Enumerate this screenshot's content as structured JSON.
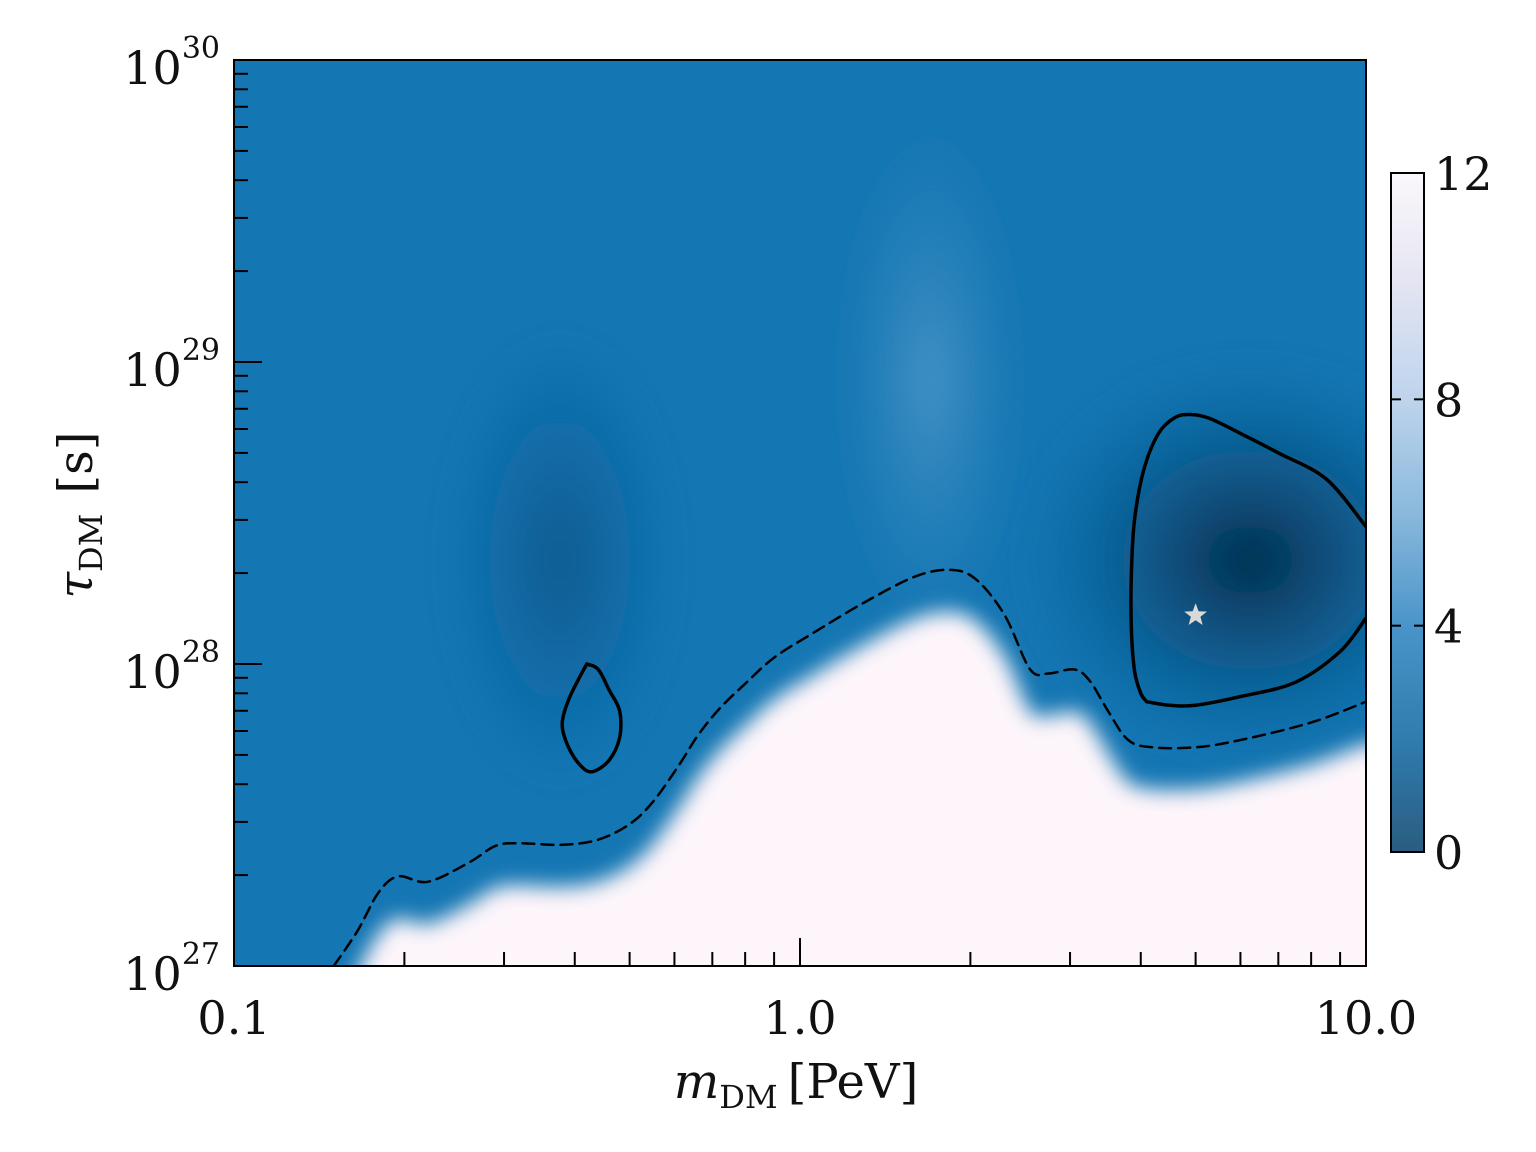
{
  "chart_data": {
    "type": "heatmap",
    "title": "",
    "xlabel": {
      "symbol": "m",
      "subscript": "DM",
      "unit": "[PeV]"
    },
    "ylabel": {
      "symbol": "τ",
      "subscript": "DM",
      "unit": "[s]"
    },
    "x_scale": "log",
    "y_scale": "log",
    "xlim": [
      0.1,
      10.0
    ],
    "ylim": [
      1e+27,
      1e+30
    ],
    "x_ticks": [
      {
        "value": 0.1,
        "label": "0.1"
      },
      {
        "value": 1.0,
        "label": "1.0"
      },
      {
        "value": 10.0,
        "label": "10.0"
      }
    ],
    "y_ticks": [
      {
        "value": 1e+27,
        "base": "10",
        "exp": "27"
      },
      {
        "value": 1e+28,
        "base": "10",
        "exp": "28"
      },
      {
        "value": 1e+29,
        "base": "10",
        "exp": "29"
      },
      {
        "value": 1e+30,
        "base": "10",
        "exp": "30"
      }
    ],
    "colorbar": {
      "range": [
        0,
        12
      ],
      "ticks": [
        0,
        4,
        8,
        12
      ],
      "colors": {
        "low": "#0b3f66",
        "mid": "#1476b3",
        "high": "#fdf5fa"
      }
    },
    "best_fit": {
      "mass": 5.0,
      "lifetime": 1.45e+28,
      "marker": "star-icon"
    },
    "contours": [
      {
        "style": "solid",
        "points": [
          [
            0.42,
            1e+28
          ],
          [
            0.44,
            9.6e+27
          ],
          [
            0.46,
            8.2e+27
          ],
          [
            0.48,
            7e+27
          ],
          [
            0.48,
            5.7e+27
          ],
          [
            0.46,
            4.8e+27
          ],
          [
            0.43,
            4.4e+27
          ],
          [
            0.41,
            4.6e+27
          ],
          [
            0.39,
            5.3e+27
          ],
          [
            0.38,
            6.3e+27
          ],
          [
            0.39,
            7.6e+27
          ],
          [
            0.41,
            9.2e+27
          ],
          [
            0.42,
            1e+28
          ]
        ]
      },
      {
        "style": "solid",
        "points": [
          [
            4.1,
            7.5e+27
          ],
          [
            4.5,
            7.3e+27
          ],
          [
            5.0,
            7.3e+27
          ],
          [
            6.0,
            7.8e+27
          ],
          [
            7.5,
            8.7e+27
          ],
          [
            9.0,
            1.1e+28
          ],
          [
            10.0,
            1.42e+28
          ]
        ]
      },
      {
        "style": "solid",
        "points": [
          [
            10.0,
            2.85e+28
          ],
          [
            8.5,
            4.1e+28
          ],
          [
            7.0,
            5e+28
          ],
          [
            6.0,
            5.8e+28
          ],
          [
            5.3,
            6.5e+28
          ],
          [
            4.9,
            6.7e+28
          ],
          [
            4.6,
            6.55e+28
          ],
          [
            4.3,
            5.8e+28
          ],
          [
            4.05,
            4.4e+28
          ],
          [
            3.9,
            3e+28
          ],
          [
            3.85,
            2e+28
          ],
          [
            3.85,
            1.3e+28
          ],
          [
            3.9,
            9.5e+27
          ],
          [
            4.0,
            8e+27
          ],
          [
            4.1,
            7.5e+27
          ]
        ]
      },
      {
        "style": "dashed",
        "points": [
          [
            0.15,
            1e+27
          ],
          [
            0.165,
            1.3e+27
          ],
          [
            0.18,
            1.75e+27
          ],
          [
            0.195,
            1.98e+27
          ],
          [
            0.22,
            1.9e+27
          ],
          [
            0.26,
            2.2e+27
          ],
          [
            0.29,
            2.5e+27
          ],
          [
            0.32,
            2.55e+27
          ],
          [
            0.38,
            2.52e+27
          ],
          [
            0.44,
            2.62e+27
          ],
          [
            0.5,
            2.95e+27
          ],
          [
            0.55,
            3.5e+27
          ],
          [
            0.61,
            4.6e+27
          ],
          [
            0.66,
            5.8e+27
          ],
          [
            0.72,
            7.1e+27
          ],
          [
            0.8,
            8.6e+27
          ],
          [
            0.9,
            1.05e+28
          ],
          [
            1.05,
            1.26e+28
          ],
          [
            1.3,
            1.6e+28
          ],
          [
            1.6,
            1.95e+28
          ],
          [
            1.85,
            2.05e+28
          ],
          [
            2.05,
            1.9e+28
          ],
          [
            2.3,
            1.45e+28
          ],
          [
            2.55,
            9.6e+27
          ],
          [
            2.75,
            9.3e+27
          ],
          [
            3.05,
            9.6e+27
          ],
          [
            3.25,
            8.8e+27
          ],
          [
            3.5,
            7e+27
          ],
          [
            3.8,
            5.6e+27
          ],
          [
            4.2,
            5.3e+27
          ],
          [
            5.0,
            5.3e+27
          ],
          [
            6.0,
            5.6e+27
          ],
          [
            8.0,
            6.4e+27
          ],
          [
            10.0,
            7.5e+27
          ]
        ]
      }
    ],
    "legend": "none",
    "grid": false
  }
}
